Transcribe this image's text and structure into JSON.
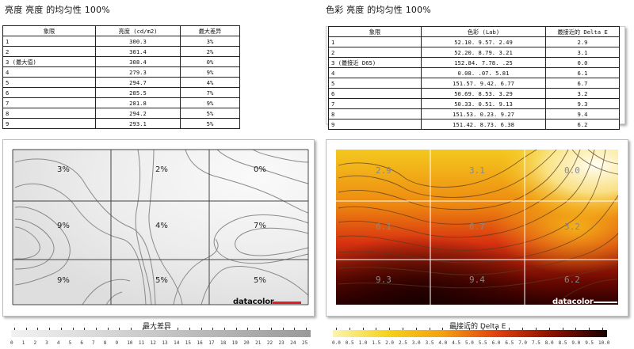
{
  "luminance": {
    "heading": "亮度 亮度 的均匀性 100%",
    "columns": [
      "象限",
      "亮度 (cd/m2)",
      "最大差异"
    ],
    "rows": [
      [
        "1",
        "300.3",
        "3%"
      ],
      [
        "2",
        "301.4",
        "2%"
      ],
      [
        "3 (最大值)",
        "308.4",
        "0%"
      ],
      [
        "4",
        "279.3",
        "9%"
      ],
      [
        "5",
        "294.7",
        "4%"
      ],
      [
        "6",
        "285.5",
        "7%"
      ],
      [
        "7",
        "281.8",
        "9%"
      ],
      [
        "8",
        "294.2",
        "5%"
      ],
      [
        "9",
        "293.1",
        "5%"
      ]
    ],
    "map_labels": [
      "3%",
      "2%",
      "0%",
      "9%",
      "4%",
      "7%",
      "9%",
      "5%",
      "5%"
    ],
    "logo": "datacolor",
    "legend_title": "最大差异",
    "legend_ticks": [
      "0",
      "1",
      "2",
      "3",
      "4",
      "5",
      "6",
      "7",
      "8",
      "9",
      "10",
      "11",
      "12",
      "13",
      "14",
      "15",
      "16",
      "17",
      "18",
      "19",
      "20",
      "21",
      "22",
      "23",
      "24",
      "25"
    ]
  },
  "color": {
    "heading": "色彩 亮度 的均匀性 100%",
    "columns": [
      "象限",
      "色彩 (Lab)",
      "最接近的 Delta E"
    ],
    "rows": [
      [
        "1",
        "52.10.   9.57.   2.49",
        "2.9"
      ],
      [
        "2",
        "52.20.   8.79.   3.21",
        "3.1"
      ],
      [
        "3 (最接近 D65)",
        "152.84.   7.78.    .25",
        "0.0"
      ],
      [
        "4",
        "0.08.    .07.   5.81",
        "6.1"
      ],
      [
        "5",
        "151.57.   9.42.   6.77",
        "6.7"
      ],
      [
        "6",
        "50.69.   8.53.   3.29",
        "3.2"
      ],
      [
        "7",
        "50.33.   0.51.   9.13",
        "9.3"
      ],
      [
        "8",
        "151.53.   0.23.   9.27",
        "9.4"
      ],
      [
        "9",
        "151.42.   8.73.   6.38",
        "6.2"
      ]
    ],
    "map_labels": [
      "2.9",
      "3.1",
      "0.0",
      "6.1",
      "6.7",
      "3.2",
      "9.3",
      "9.4",
      "6.2"
    ],
    "logo": "datacolor",
    "legend_title": "最接近的 Delta E",
    "legend_ticks": [
      "0.0",
      "0.5",
      "1.0",
      "1.5",
      "2.0",
      "2.5",
      "3.0",
      "3.5",
      "4.0",
      "4.5",
      "5.0",
      "5.5",
      "6.0",
      "6.5",
      "7.0",
      "7.5",
      "8.0",
      "8.5",
      "9.0",
      "9.5",
      "10.0"
    ]
  },
  "colors": {
    "legend_gray_start": "#eeeeee",
    "legend_gray_end": "#9a9a9a",
    "heat_hot": "#fffde8",
    "heat_yellow": "#f4d21a",
    "heat_red": "#d42a0a",
    "heat_dark": "#1a0000",
    "logo_red": "#e41b23"
  }
}
